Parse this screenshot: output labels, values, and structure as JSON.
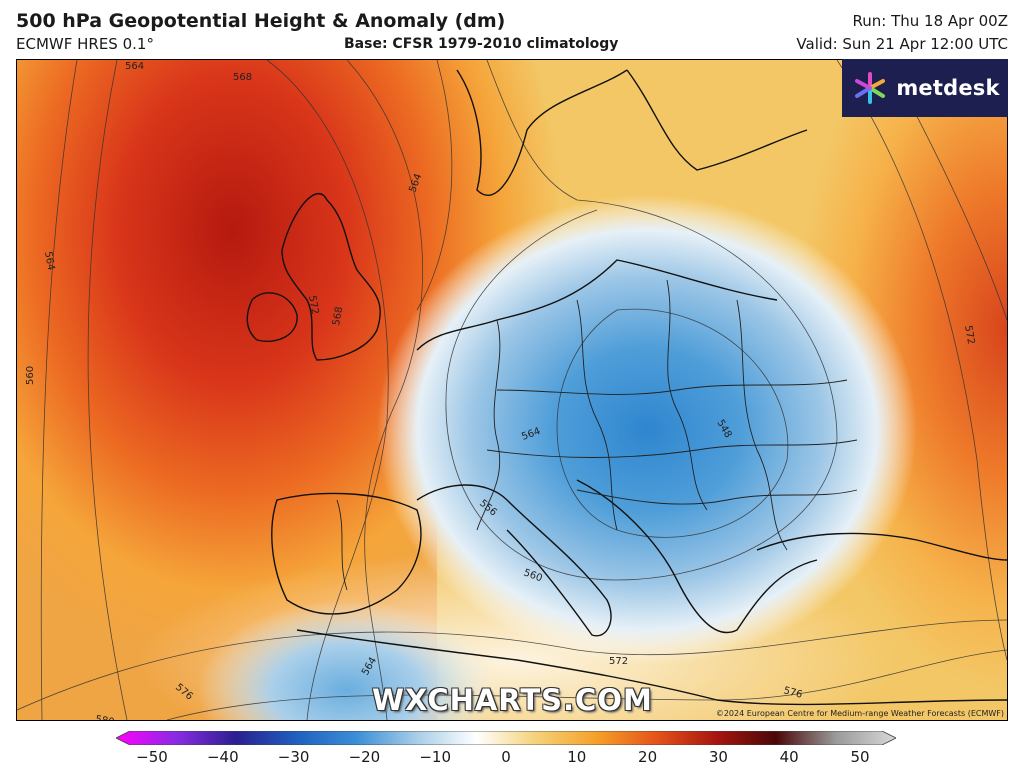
{
  "header": {
    "title": "500 hPa Geopotential Height & Anomaly (dm)",
    "model": "ECMWF HRES 0.1°",
    "base": "Base: CFSR 1979-2010 climatology",
    "run": "Run: Thu 18 Apr 00Z",
    "valid": "Valid: Sun 21 Apr 12:00 UTC"
  },
  "logo": {
    "text": "metdesk",
    "icon": "asterisk-star-icon",
    "background": "#1c1f4f"
  },
  "watermark": "WXCHARTS.COM",
  "copyright": "©2024 European Centre for Medium-range Weather Forecasts (ECMWF)",
  "contour_labels": [
    "564",
    "568",
    "564",
    "564",
    "560",
    "572",
    "568",
    "564",
    "548",
    "556",
    "560",
    "572",
    "572",
    "564",
    "576",
    "576",
    "580"
  ],
  "colorbar": {
    "ticks": [
      "−50",
      "−40",
      "−30",
      "−20",
      "−10",
      "0",
      "10",
      "20",
      "30",
      "40",
      "50"
    ],
    "colors": [
      "#ff00ff",
      "#8a2be2",
      "#2a1f8f",
      "#1f5fbf",
      "#3b8fd6",
      "#a7cde8",
      "#ffffff",
      "#f5d27a",
      "#f5a12a",
      "#e5541a",
      "#a81510",
      "#4a0808",
      "#9a9a9a",
      "#d8d8d8"
    ]
  }
}
